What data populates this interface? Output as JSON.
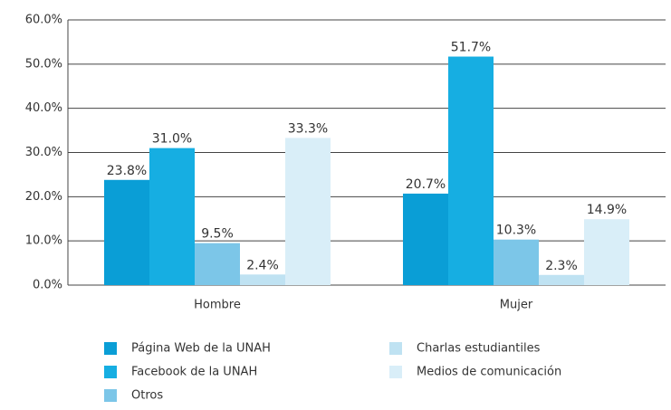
{
  "chart_data": {
    "type": "bar",
    "categories": [
      "Hombre",
      "Mujer"
    ],
    "series": [
      {
        "name": "Página Web de la UNAH",
        "color": "#0a9ed6",
        "values": [
          23.8,
          20.7
        ],
        "value_labels": [
          "23.8%",
          "20.7%"
        ]
      },
      {
        "name": "Facebook de la UNAH",
        "color": "#16aee2",
        "values": [
          31.0,
          51.7
        ],
        "value_labels": [
          "31.0%",
          "51.7%"
        ]
      },
      {
        "name": "Otros",
        "color": "#7cc6e8",
        "values": [
          9.5,
          10.3
        ],
        "value_labels": [
          "9.5%",
          "10.3%"
        ]
      },
      {
        "name": "Charlas estudiantiles",
        "color": "#bfe2f2",
        "values": [
          2.4,
          2.3
        ],
        "value_labels": [
          "2.4%",
          "2.3%"
        ]
      },
      {
        "name": "Medios de comunicación",
        "color": "#d9eef8",
        "values": [
          33.3,
          14.9
        ],
        "value_labels": [
          "33.3%",
          "14.9%"
        ]
      }
    ],
    "ylim": [
      0,
      60
    ],
    "yticks": [
      {
        "value": 0,
        "label": "0.0%"
      },
      {
        "value": 10,
        "label": "10.0%"
      },
      {
        "value": 20,
        "label": "20.0%"
      },
      {
        "value": 30,
        "label": "30.0%"
      },
      {
        "value": 40,
        "label": "40.0%"
      },
      {
        "value": 50,
        "label": "50.0%"
      },
      {
        "value": 60,
        "label": "60.0%"
      }
    ],
    "grid": true
  }
}
